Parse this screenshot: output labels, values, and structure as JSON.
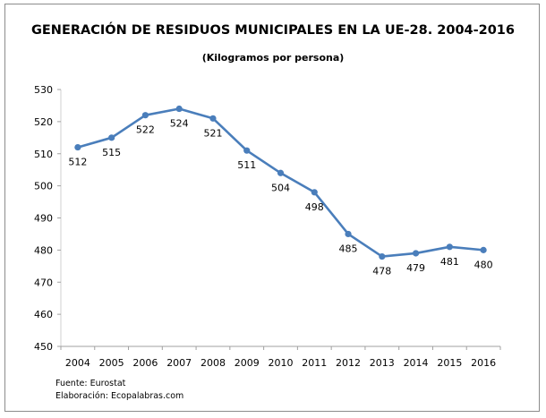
{
  "chart_data": {
    "type": "line",
    "title": "GENERACIÓN DE RESIDUOS MUNICIPALES EN LA UE-28. 2004-2016",
    "subtitle": "(Kilogramos por persona)",
    "categories": [
      "2004",
      "2005",
      "2006",
      "2007",
      "2008",
      "2009",
      "2010",
      "2011",
      "2012",
      "2013",
      "2014",
      "2015",
      "2016"
    ],
    "series": [
      {
        "values": [
          512,
          515,
          522,
          524,
          521,
          511,
          504,
          498,
          485,
          478,
          479,
          481,
          480
        ]
      }
    ],
    "ylim": [
      450,
      530
    ],
    "yticks": [
      450,
      460,
      470,
      480,
      490,
      500,
      510,
      520,
      530
    ],
    "grid": false,
    "legend": "none",
    "line_color": "#4a7ebb",
    "data_labels": true
  },
  "footer": {
    "source": "Fuente: Eurostat",
    "credit": "Elaboración: Ecopalabras.com"
  }
}
